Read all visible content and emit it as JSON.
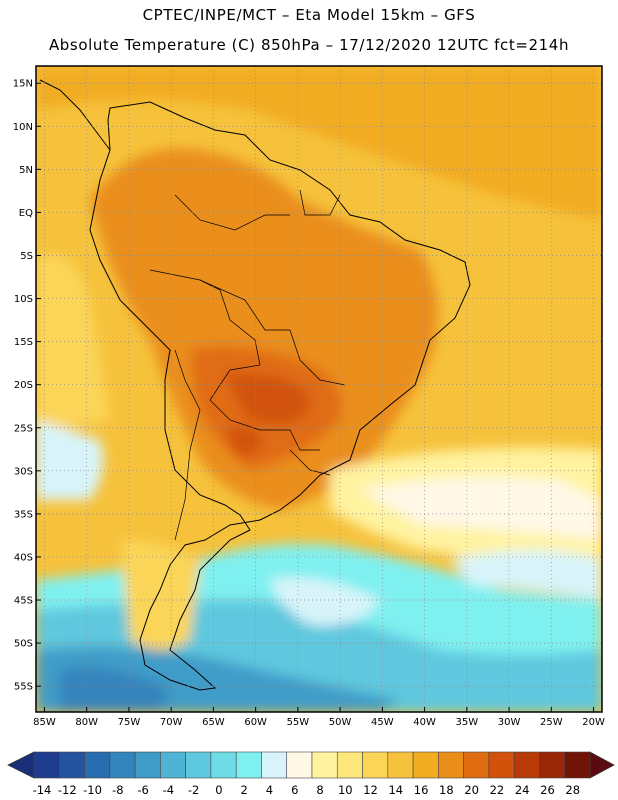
{
  "header": {
    "line1": "CPTEC/INPE/MCT –  Eta Model 15km – GFS",
    "line2": "Absolute Temperature (C) 850hPa – 17/12/2020 12UTC fct=214h"
  },
  "map": {
    "lon_range": [
      -86,
      -19
    ],
    "lat_range": [
      -58,
      17
    ],
    "lat_ticks": [
      "15N",
      "10N",
      "5N",
      "EQ",
      "5S",
      "10S",
      "15S",
      "20S",
      "25S",
      "30S",
      "35S",
      "40S",
      "45S",
      "50S",
      "55S"
    ],
    "lat_values": [
      15,
      10,
      5,
      0,
      -5,
      -10,
      -15,
      -20,
      -25,
      -30,
      -35,
      -40,
      -45,
      -50,
      -55
    ],
    "lon_ticks": [
      "85W",
      "80W",
      "75W",
      "70W",
      "65W",
      "60W",
      "55W",
      "50W",
      "45W",
      "40W",
      "35W",
      "30W",
      "25W",
      "20W"
    ],
    "lon_values": [
      -85,
      -80,
      -75,
      -70,
      -65,
      -60,
      -55,
      -50,
      -45,
      -40,
      -35,
      -30,
      -25,
      -20
    ],
    "grid": true,
    "grid_style": "dotted"
  },
  "colorbar": {
    "labels": [
      "-14",
      "-12",
      "-10",
      "-8",
      "-6",
      "-4",
      "-2",
      "0",
      "2",
      "4",
      "6",
      "8",
      "10",
      "12",
      "14",
      "16",
      "18",
      "20",
      "22",
      "24",
      "26",
      "28"
    ],
    "colors": [
      "#1e3d8f",
      "#2454a0",
      "#2a6cb0",
      "#3484bd",
      "#3f9cc8",
      "#4fb3d4",
      "#5ec8de",
      "#6fdbe6",
      "#7ff0f0",
      "#d8f4fa",
      "#fff8e6",
      "#fff3a0",
      "#fde778",
      "#fbd558",
      "#f6c23c",
      "#f2ac22",
      "#ea8e1a",
      "#e06c12",
      "#d2520c",
      "#b73a08",
      "#992606",
      "#701405"
    ],
    "left_arrow_color": "#1a2f7a",
    "right_arrow_color": "#5a0a10"
  }
}
